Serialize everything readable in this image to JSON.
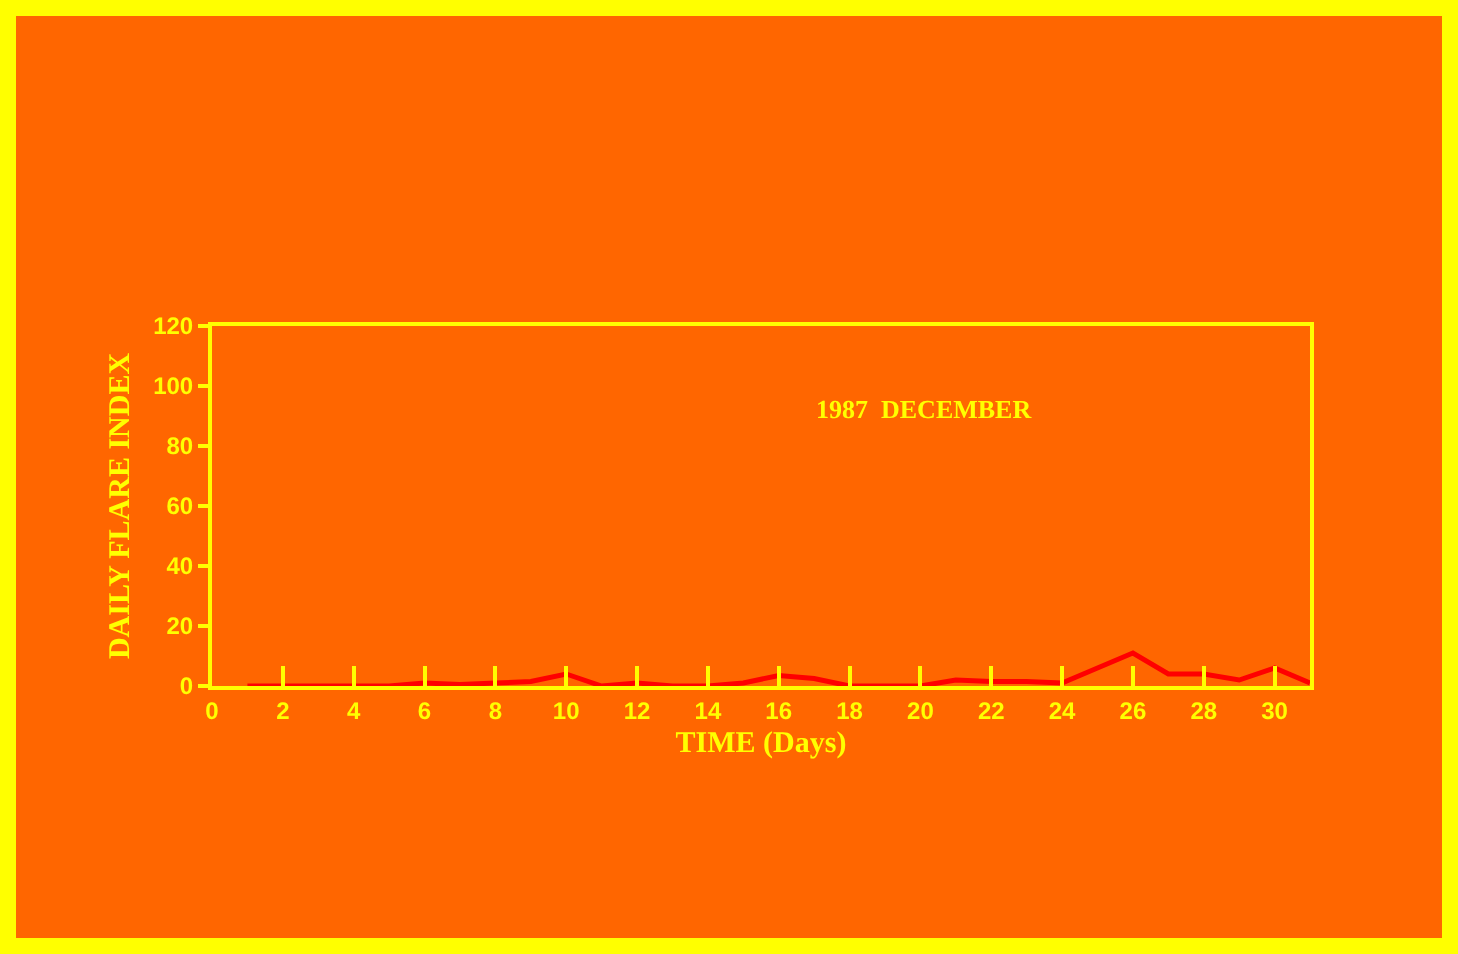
{
  "chart_data": {
    "type": "line",
    "xlabel": "TIME (Days)",
    "ylabel": "DAILY FLARE INDEX",
    "annotations": [
      "1987  DECEMBER"
    ],
    "x": [
      1,
      2,
      3,
      4,
      5,
      6,
      7,
      8,
      9,
      10,
      11,
      12,
      13,
      14,
      15,
      16,
      17,
      18,
      19,
      20,
      21,
      22,
      23,
      24,
      25,
      26,
      27,
      28,
      29,
      30,
      31
    ],
    "series": [
      {
        "color": "#ff0000",
        "values": [
          0,
          0,
          0,
          0,
          0,
          1,
          0.5,
          1,
          1.5,
          4,
          0,
          1,
          0,
          0,
          1,
          3.5,
          2.5,
          0,
          0,
          0,
          2,
          1.5,
          1.5,
          1,
          6,
          11,
          4,
          4,
          2,
          6,
          1
        ]
      }
    ],
    "xlim": [
      0,
      31
    ],
    "xticks": [
      0,
      2,
      4,
      6,
      8,
      10,
      12,
      14,
      16,
      18,
      20,
      22,
      24,
      26,
      28,
      30
    ],
    "ylim": [
      0,
      120
    ],
    "yticks": [
      0,
      20,
      40,
      60,
      80,
      100,
      120
    ],
    "marker": "none",
    "line_style": "solid"
  }
}
